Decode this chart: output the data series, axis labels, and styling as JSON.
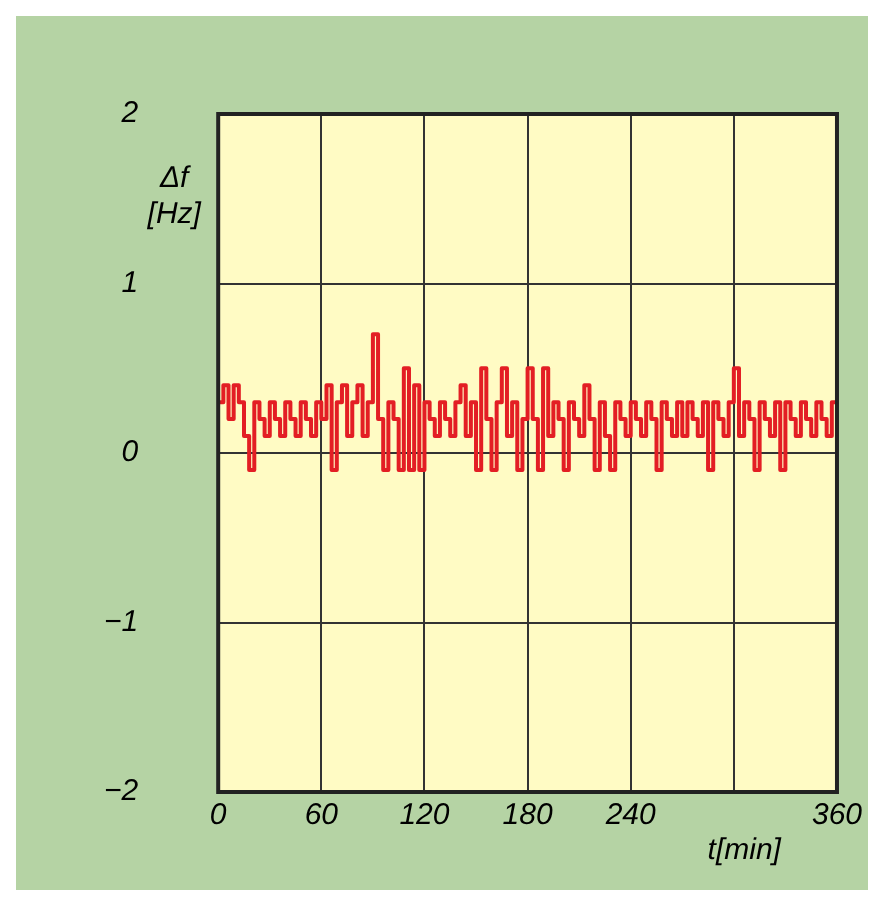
{
  "chart_data": {
    "type": "step",
    "xlabel": "t[min]",
    "ylabel": "Δf [Hz]",
    "xlim": [
      0,
      360
    ],
    "xticks": [
      0,
      60,
      120,
      180,
      240,
      {
        "value": 300,
        "label": null
      },
      360
    ],
    "ylim": [
      -2,
      2
    ],
    "yticks": [
      {
        "value": -2,
        "label": "−2"
      },
      {
        "value": -1,
        "label": "−1"
      },
      0,
      1,
      2
    ],
    "grid": true,
    "legend": false,
    "marker": "none",
    "line_style": "solid",
    "series": [
      {
        "color": "#e31e24",
        "x": [
          0,
          3,
          6,
          9,
          12,
          15,
          18,
          21,
          24,
          27,
          30,
          33,
          36,
          39,
          42,
          45,
          48,
          51,
          54,
          57,
          60,
          63,
          66,
          69,
          72,
          75,
          78,
          81,
          84,
          87,
          90,
          93,
          96,
          99,
          102,
          105,
          108,
          111,
          114,
          117,
          120,
          123,
          126,
          129,
          132,
          135,
          138,
          141,
          144,
          147,
          150,
          153,
          156,
          159,
          162,
          165,
          168,
          171,
          174,
          177,
          180,
          183,
          186,
          189,
          192,
          195,
          198,
          201,
          204,
          207,
          210,
          213,
          216,
          219,
          222,
          225,
          228,
          231,
          234,
          237,
          240,
          243,
          246,
          249,
          252,
          255,
          258,
          261,
          264,
          267,
          270,
          273,
          276,
          279,
          282,
          285,
          288,
          291,
          294,
          297,
          300,
          303,
          306,
          309,
          312,
          315,
          318,
          321,
          324,
          327,
          330,
          333,
          336,
          339,
          342,
          345,
          348,
          351,
          354,
          357,
          360
        ],
        "values": [
          0.3,
          0.4,
          0.2,
          0.4,
          0.3,
          0.1,
          -0.1,
          0.3,
          0.2,
          0.1,
          0.3,
          0.2,
          0.1,
          0.3,
          0.2,
          0.1,
          0.3,
          0.2,
          0.1,
          0.3,
          0.2,
          0.4,
          -0.1,
          0.3,
          0.4,
          0.1,
          0.3,
          0.4,
          0.1,
          0.3,
          0.7,
          0.2,
          -0.1,
          0.3,
          0.2,
          -0.1,
          0.5,
          -0.1,
          0.4,
          -0.1,
          0.3,
          0.2,
          0.1,
          0.3,
          0.2,
          0.1,
          0.3,
          0.4,
          0.1,
          0.3,
          -0.1,
          0.5,
          0.2,
          -0.1,
          0.3,
          0.5,
          0.1,
          0.3,
          -0.1,
          0.2,
          0.5,
          0.2,
          -0.1,
          0.5,
          0.1,
          0.3,
          0.2,
          -0.1,
          0.3,
          0.2,
          0.1,
          0.4,
          0.2,
          -0.1,
          0.3,
          0.1,
          -0.1,
          0.3,
          0.2,
          0.1,
          0.3,
          0.2,
          0.1,
          0.3,
          0.2,
          -0.1,
          0.3,
          0.2,
          0.1,
          0.3,
          0.1,
          0.3,
          0.2,
          0.1,
          0.3,
          -0.1,
          0.3,
          0.2,
          0.1,
          0.3,
          0.5,
          0.1,
          0.3,
          0.2,
          -0.1,
          0.3,
          0.2,
          0.1,
          0.3,
          -0.1,
          0.3,
          0.2,
          0.1,
          0.3,
          0.2,
          0.1,
          0.3,
          0.2,
          0.1,
          0.3,
          0.2
        ]
      }
    ]
  }
}
